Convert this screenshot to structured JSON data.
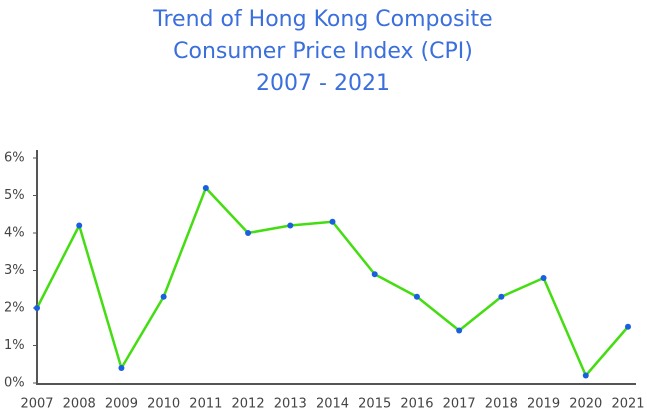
{
  "chart_data": {
    "type": "line",
    "title": [
      "Trend of Hong Kong Composite",
      "Consumer Price Index (CPI)",
      "2007 - 2021"
    ],
    "categories": [
      "2007",
      "2008",
      "2009",
      "2010",
      "2011",
      "2012",
      "2013",
      "2014",
      "2015",
      "2016",
      "2017",
      "2018",
      "2019",
      "2020",
      "2021"
    ],
    "series": [
      {
        "color": "#44dd11",
        "marker_color": "#1a5fe0",
        "values": [
          2.0,
          4.2,
          0.4,
          2.3,
          5.2,
          4.0,
          4.2,
          4.3,
          2.9,
          2.3,
          1.4,
          2.3,
          2.8,
          0.2,
          1.5
        ]
      }
    ],
    "ylim": [
      0,
      6
    ],
    "yticks": [
      {
        "value": 0,
        "label": "0%"
      },
      {
        "value": 1,
        "label": "1%"
      },
      {
        "value": 2,
        "label": "2%"
      },
      {
        "value": 3,
        "label": "3%"
      },
      {
        "value": 4,
        "label": "4%"
      },
      {
        "value": 5,
        "label": "5%"
      },
      {
        "value": 6,
        "label": "6%"
      }
    ],
    "grid": false
  }
}
